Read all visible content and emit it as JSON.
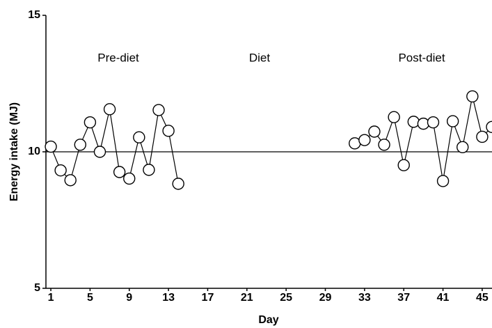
{
  "chart_data": {
    "type": "line",
    "x_label": "Day",
    "y_label": "Energy intake (MJ)",
    "annotations": [
      "Pre-diet",
      "Diet",
      "Post-diet"
    ],
    "x": [
      1,
      2,
      3,
      4,
      5,
      6,
      7,
      8,
      9,
      10,
      11,
      12,
      13,
      14,
      15,
      16,
      17,
      18,
      19,
      20,
      21,
      22,
      23,
      24,
      25,
      26,
      27,
      28,
      29,
      30,
      31,
      32,
      33,
      34,
      35,
      36,
      37,
      38,
      39,
      40,
      41,
      42,
      43,
      44,
      45,
      46
    ],
    "series": [
      {
        "color": "#000000",
        "values": [
          10.19,
          9.32,
          8.96,
          10.26,
          11.08,
          10.0,
          11.56,
          9.26,
          9.02,
          10.53,
          9.34,
          11.53,
          10.77,
          8.83,
          null,
          null,
          null,
          null,
          null,
          null,
          null,
          null,
          null,
          null,
          null,
          null,
          null,
          null,
          null,
          null,
          null,
          10.31,
          10.43,
          10.74,
          10.26,
          11.27,
          9.51,
          11.1,
          11.03,
          11.08,
          8.93,
          11.12,
          10.17,
          12.03,
          10.55,
          10.91
        ]
      }
    ],
    "reference_line": 10,
    "xlim": [
      0.5,
      46
    ],
    "ylim": [
      5,
      15
    ],
    "xticks": [
      1,
      5,
      9,
      13,
      17,
      21,
      25,
      29,
      33,
      37,
      41,
      45
    ],
    "yticks": [
      5,
      10,
      15
    ]
  }
}
